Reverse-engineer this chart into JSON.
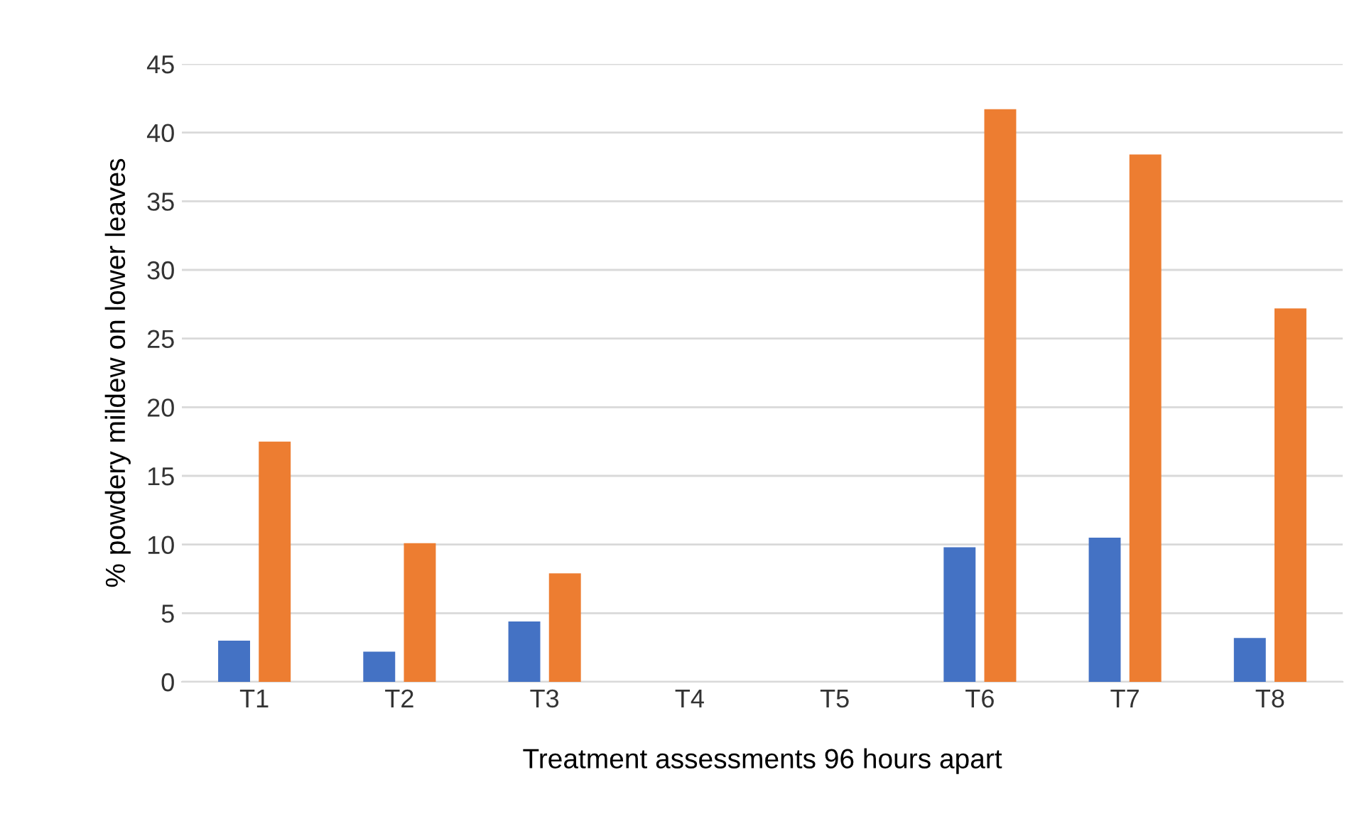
{
  "chart_data": {
    "type": "bar",
    "xlabel": "Treatment assessments 96 hours apart",
    "ylabel": "% powdery mildew on lower leaves",
    "categories": [
      "T1",
      "T2",
      "T3",
      "T4",
      "T5",
      "T6",
      "T7",
      "T8"
    ],
    "series": [
      {
        "color": "#4472c4",
        "values": [
          3.0,
          2.2,
          4.4,
          0,
          0,
          9.8,
          10.5,
          3.2
        ]
      },
      {
        "color": "#ed7d31",
        "values": [
          17.5,
          10.1,
          7.9,
          0,
          0,
          41.7,
          38.4,
          27.2
        ]
      }
    ],
    "ylim": [
      0,
      45
    ],
    "yticks": [
      0,
      5,
      10,
      15,
      20,
      25,
      30,
      35,
      40,
      45
    ],
    "grid": "y",
    "legend": false
  }
}
